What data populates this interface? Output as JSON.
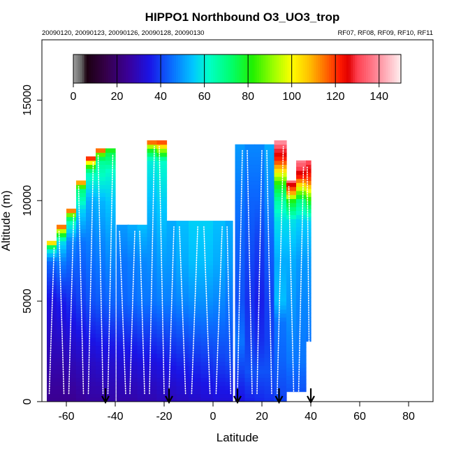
{
  "chart_data": {
    "type": "heatmap",
    "title": "HIPPO1 Northbound O3_UO3_trop",
    "subtitle_left": "20090120, 20090123, 20090126, 20090128, 20090130",
    "subtitle_right": "RF07, RF08, RF09, RF10, RF11",
    "xlabel": "Latitude",
    "ylabel": "Altitude (m)",
    "xlim": [
      -70,
      90
    ],
    "ylim": [
      0,
      18000
    ],
    "x_ticks": [
      -60,
      -40,
      -20,
      0,
      20,
      40,
      60,
      80
    ],
    "y_ticks": [
      0,
      5000,
      10000,
      15000
    ],
    "colorbar": {
      "range": [
        0,
        150
      ],
      "ticks": [
        0,
        20,
        40,
        60,
        80,
        100,
        120,
        140
      ],
      "placement": "top inside plot, horizontal",
      "stops": [
        {
          "v": 0,
          "c": "#a0a0a0"
        },
        {
          "v": 4,
          "c": "#606060"
        },
        {
          "v": 6,
          "c": "#1a0010"
        },
        {
          "v": 15,
          "c": "#35004a"
        },
        {
          "v": 25,
          "c": "#3a0098"
        },
        {
          "v": 35,
          "c": "#1a14e6"
        },
        {
          "v": 45,
          "c": "#0a6cff"
        },
        {
          "v": 55,
          "c": "#00c8ff"
        },
        {
          "v": 62,
          "c": "#00ffc8"
        },
        {
          "v": 72,
          "c": "#00ff70"
        },
        {
          "v": 82,
          "c": "#20f000"
        },
        {
          "v": 92,
          "c": "#a0ff00"
        },
        {
          "v": 100,
          "c": "#ffff00"
        },
        {
          "v": 108,
          "c": "#ffc000"
        },
        {
          "v": 115,
          "c": "#ff7000"
        },
        {
          "v": 122,
          "c": "#ff1a00"
        },
        {
          "v": 126,
          "c": "#e00000"
        },
        {
          "v": 130,
          "c": "#ff4050"
        },
        {
          "v": 138,
          "c": "#ff8090"
        },
        {
          "v": 145,
          "c": "#ffc0c8"
        },
        {
          "v": 150,
          "c": "#fff0f0"
        }
      ]
    },
    "flight_arrows_latitude": [
      -44,
      -18,
      10,
      27,
      40
    ],
    "curtain_columns": [
      {
        "lat": -66,
        "width": 4,
        "top": 8000,
        "ozone": [
          [
            0,
            24
          ],
          [
            2000,
            28
          ],
          [
            5000,
            34
          ],
          [
            7000,
            45
          ],
          [
            7600,
            62
          ],
          [
            7800,
            85
          ],
          [
            8000,
            122
          ]
        ]
      },
      {
        "lat": -62,
        "width": 4,
        "top": 8800,
        "ozone": [
          [
            0,
            24
          ],
          [
            2000,
            28
          ],
          [
            5000,
            36
          ],
          [
            7000,
            47
          ],
          [
            8000,
            58
          ],
          [
            8400,
            85
          ],
          [
            8800,
            124
          ]
        ]
      },
      {
        "lat": -58,
        "width": 4,
        "top": 9600,
        "ozone": [
          [
            0,
            24
          ],
          [
            2000,
            29
          ],
          [
            5000,
            38
          ],
          [
            8000,
            48
          ],
          [
            9000,
            64
          ],
          [
            9300,
            88
          ],
          [
            9600,
            126
          ]
        ]
      },
      {
        "lat": -54,
        "width": 4,
        "top": 11000,
        "ozone": [
          [
            0,
            25
          ],
          [
            2000,
            30
          ],
          [
            5000,
            40
          ],
          [
            8000,
            46
          ],
          [
            9500,
            56
          ],
          [
            10500,
            70
          ],
          [
            10800,
            92
          ],
          [
            11000,
            128
          ]
        ]
      },
      {
        "lat": -50,
        "width": 4,
        "top": 12200,
        "ozone": [
          [
            0,
            26
          ],
          [
            2000,
            31
          ],
          [
            5000,
            42
          ],
          [
            8000,
            47
          ],
          [
            10000,
            52
          ],
          [
            11400,
            64
          ],
          [
            11800,
            90
          ],
          [
            12200,
            130
          ]
        ]
      },
      {
        "lat": -46,
        "width": 4,
        "top": 12600,
        "ozone": [
          [
            0,
            26
          ],
          [
            2000,
            32
          ],
          [
            5000,
            43
          ],
          [
            8000,
            48
          ],
          [
            10000,
            53
          ],
          [
            12000,
            68
          ],
          [
            12400,
            92
          ],
          [
            12600,
            138
          ]
        ]
      },
      {
        "lat": -42,
        "width": 4,
        "top": 12600,
        "ozone": [
          [
            0,
            27
          ],
          [
            2000,
            32
          ],
          [
            5000,
            44
          ],
          [
            8000,
            50
          ],
          [
            10000,
            55
          ],
          [
            11500,
            62
          ],
          [
            12300,
            74
          ],
          [
            12600,
            82
          ]
        ]
      },
      {
        "lat": -37,
        "width": 5,
        "top": 8800,
        "ozone": [
          [
            0,
            27
          ],
          [
            2000,
            33
          ],
          [
            5000,
            44
          ],
          [
            7000,
            46
          ],
          [
            8800,
            50
          ]
        ]
      },
      {
        "lat": -33,
        "width": 4,
        "top": 8800,
        "ozone": [
          [
            0,
            27
          ],
          [
            2000,
            33
          ],
          [
            5000,
            45
          ],
          [
            7000,
            47
          ],
          [
            8800,
            52
          ]
        ]
      },
      {
        "lat": -29,
        "width": 4,
        "top": 8800,
        "ozone": [
          [
            0,
            28
          ],
          [
            2000,
            34
          ],
          [
            5000,
            46
          ],
          [
            7000,
            48
          ],
          [
            8800,
            54
          ]
        ]
      },
      {
        "lat": -25,
        "width": 4,
        "top": 13000,
        "ozone": [
          [
            0,
            28
          ],
          [
            2000,
            34
          ],
          [
            5000,
            46
          ],
          [
            8000,
            50
          ],
          [
            10000,
            54
          ],
          [
            12000,
            60
          ],
          [
            12600,
            82
          ],
          [
            13000,
            126
          ]
        ]
      },
      {
        "lat": -21,
        "width": 4,
        "top": 13000,
        "ozone": [
          [
            0,
            29
          ],
          [
            2000,
            35
          ],
          [
            5000,
            47
          ],
          [
            8000,
            52
          ],
          [
            10000,
            56
          ],
          [
            12000,
            62
          ],
          [
            12500,
            90
          ],
          [
            13000,
            124
          ]
        ]
      },
      {
        "lat": -17,
        "width": 4,
        "top": 9000,
        "ozone": [
          [
            0,
            29
          ],
          [
            2000,
            36
          ],
          [
            5000,
            47
          ],
          [
            7000,
            50
          ],
          [
            9000,
            52
          ]
        ]
      },
      {
        "lat": -12.5,
        "width": 5,
        "top": 9000,
        "ozone": [
          [
            0,
            30
          ],
          [
            2000,
            37
          ],
          [
            5000,
            48
          ],
          [
            7000,
            52
          ],
          [
            9000,
            54
          ]
        ]
      },
      {
        "lat": -7.5,
        "width": 5,
        "top": 9000,
        "ozone": [
          [
            0,
            31
          ],
          [
            2000,
            38
          ],
          [
            5000,
            49
          ],
          [
            7000,
            54
          ],
          [
            9000,
            56
          ]
        ]
      },
      {
        "lat": -2.5,
        "width": 5,
        "top": 9000,
        "ozone": [
          [
            0,
            32
          ],
          [
            2000,
            39
          ],
          [
            5000,
            49
          ],
          [
            7000,
            54
          ],
          [
            9000,
            56
          ]
        ]
      },
      {
        "lat": 2.5,
        "width": 5,
        "top": 9000,
        "ozone": [
          [
            0,
            33
          ],
          [
            2000,
            40
          ],
          [
            5000,
            48
          ],
          [
            7000,
            52
          ],
          [
            9000,
            54
          ]
        ]
      },
      {
        "lat": 6.5,
        "width": 3,
        "top": 9000,
        "ozone": [
          [
            0,
            33
          ],
          [
            2000,
            41
          ],
          [
            5000,
            46
          ],
          [
            7000,
            50
          ],
          [
            9000,
            52
          ]
        ]
      },
      {
        "lat": 11,
        "width": 4,
        "top": 12800,
        "ozone": [
          [
            0,
            34
          ],
          [
            1500,
            40
          ],
          [
            3000,
            46
          ],
          [
            5000,
            42
          ],
          [
            8000,
            44
          ],
          [
            10000,
            46
          ],
          [
            12800,
            50
          ]
        ]
      },
      {
        "lat": 15,
        "width": 4,
        "top": 12800,
        "ozone": [
          [
            0,
            36
          ],
          [
            1500,
            42
          ],
          [
            3000,
            40
          ],
          [
            5000,
            38
          ],
          [
            8000,
            42
          ],
          [
            10000,
            44
          ],
          [
            12800,
            48
          ]
        ]
      },
      {
        "lat": 19,
        "width": 4,
        "top": 12800,
        "ozone": [
          [
            0,
            37
          ],
          [
            1500,
            42
          ],
          [
            3000,
            38
          ],
          [
            5000,
            36
          ],
          [
            8000,
            40
          ],
          [
            10000,
            44
          ],
          [
            12800,
            48
          ]
        ]
      },
      {
        "lat": 23,
        "width": 4,
        "top": 12800,
        "ozone": [
          [
            0,
            38
          ],
          [
            1500,
            42
          ],
          [
            3000,
            40
          ],
          [
            5000,
            40
          ],
          [
            8000,
            44
          ],
          [
            10000,
            48
          ],
          [
            12800,
            52
          ]
        ]
      },
      {
        "lat": 27.5,
        "width": 5,
        "top": 13000,
        "ozone": [
          [
            0,
            40
          ],
          [
            2000,
            44
          ],
          [
            4000,
            46
          ],
          [
            5000,
            54
          ],
          [
            7000,
            52
          ],
          [
            9000,
            58
          ],
          [
            10000,
            66
          ],
          [
            10800,
            80
          ],
          [
            11400,
            100
          ],
          [
            12000,
            120
          ],
          [
            12600,
            130
          ],
          [
            13000,
            142
          ]
        ]
      },
      {
        "lat": 32,
        "width": 4,
        "top": 11000,
        "ozone": [
          [
            500,
            42
          ],
          [
            2000,
            46
          ],
          [
            5000,
            50
          ],
          [
            7000,
            52
          ],
          [
            9000,
            58
          ],
          [
            10000,
            80
          ],
          [
            10400,
            110
          ],
          [
            10800,
            126
          ],
          [
            11000,
            138
          ]
        ]
      },
      {
        "lat": 36,
        "width": 4,
        "top": 12000,
        "ozone": [
          [
            500,
            42
          ],
          [
            2000,
            46
          ],
          [
            5000,
            48
          ],
          [
            7000,
            50
          ],
          [
            9000,
            56
          ],
          [
            10000,
            70
          ],
          [
            10600,
            96
          ],
          [
            11200,
            122
          ],
          [
            12000,
            138
          ]
        ]
      },
      {
        "lat": 39,
        "width": 2,
        "top": 12000,
        "ozone": [
          [
            3000,
            46
          ],
          [
            5000,
            48
          ],
          [
            7000,
            50
          ],
          [
            9000,
            56
          ],
          [
            10000,
            80
          ],
          [
            11000,
            118
          ],
          [
            12000,
            132
          ]
        ]
      }
    ]
  }
}
